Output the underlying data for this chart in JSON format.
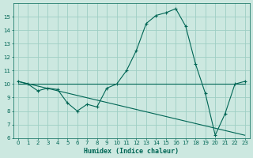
{
  "xlabel": "Humidex (Indice chaleur)",
  "background_color": "#cce8e0",
  "grid_color": "#9ecec4",
  "line_color": "#006655",
  "series1": {
    "x": [
      0,
      1,
      2,
      3,
      4,
      5,
      6,
      7,
      8,
      9,
      10,
      11,
      12,
      13,
      14,
      15,
      16,
      17,
      18,
      19,
      20,
      21,
      22,
      23
    ],
    "y": [
      10.2,
      10.0,
      9.5,
      9.7,
      9.6,
      8.6,
      8.0,
      8.5,
      8.3,
      9.7,
      10.0,
      11.0,
      12.5,
      14.5,
      15.1,
      15.3,
      15.6,
      14.3,
      11.5,
      9.3,
      6.2,
      7.8,
      10.0,
      10.2
    ]
  },
  "series2": {
    "x": [
      0,
      23
    ],
    "y": [
      10.2,
      6.2
    ]
  },
  "series3": {
    "x": [
      0,
      23
    ],
    "y": [
      10.0,
      10.0
    ]
  },
  "ylim": [
    6,
    16
  ],
  "xlim": [
    -0.5,
    23.5
  ],
  "yticks": [
    6,
    7,
    8,
    9,
    10,
    11,
    12,
    13,
    14,
    15
  ],
  "xticks": [
    0,
    1,
    2,
    3,
    4,
    5,
    6,
    7,
    8,
    9,
    10,
    11,
    12,
    13,
    14,
    15,
    16,
    17,
    18,
    19,
    20,
    21,
    22,
    23
  ],
  "xlabel_fontsize": 6.0,
  "tick_fontsize": 5.0
}
